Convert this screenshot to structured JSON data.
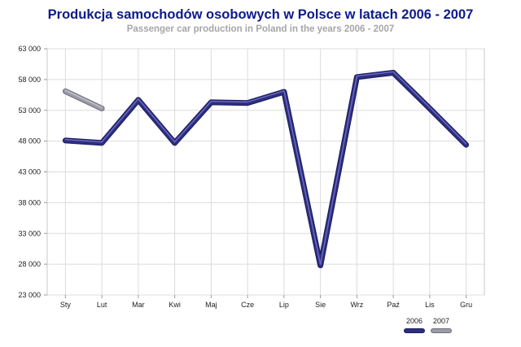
{
  "chart_data": {
    "type": "line",
    "title": "Produkcja samochodów osobowych w Polsce w latach 2006 - 2007",
    "subtitle": "Passenger car production in Poland in the years 2006 - 2007",
    "xlabel": "",
    "ylabel": "",
    "categories": [
      "Sty",
      "Lut",
      "Mar",
      "Kwi",
      "Maj",
      "Cze",
      "Lip",
      "Sie",
      "Wrz",
      "Paź",
      "Lis",
      "Gru"
    ],
    "ylim": [
      23000,
      63000
    ],
    "yticks": [
      23000,
      28000,
      33000,
      38000,
      43000,
      48000,
      53000,
      58000,
      63000
    ],
    "ytick_labels": [
      "23 000",
      "28 000",
      "33 000",
      "38 000",
      "43 000",
      "48 000",
      "53 000",
      "58 000",
      "63 000"
    ],
    "grid": true,
    "legend_position": "bottom-right",
    "series": [
      {
        "name": "2006",
        "color": "#2e2e80",
        "values": [
          48100,
          47700,
          54700,
          47700,
          54300,
          54200,
          56000,
          27800,
          58400,
          59100,
          53300,
          47400
        ]
      },
      {
        "name": "2007",
        "color": "#9a9aa8",
        "values": [
          56100,
          53300,
          null,
          null,
          null,
          null,
          null,
          null,
          null,
          null,
          null,
          null
        ]
      }
    ]
  }
}
